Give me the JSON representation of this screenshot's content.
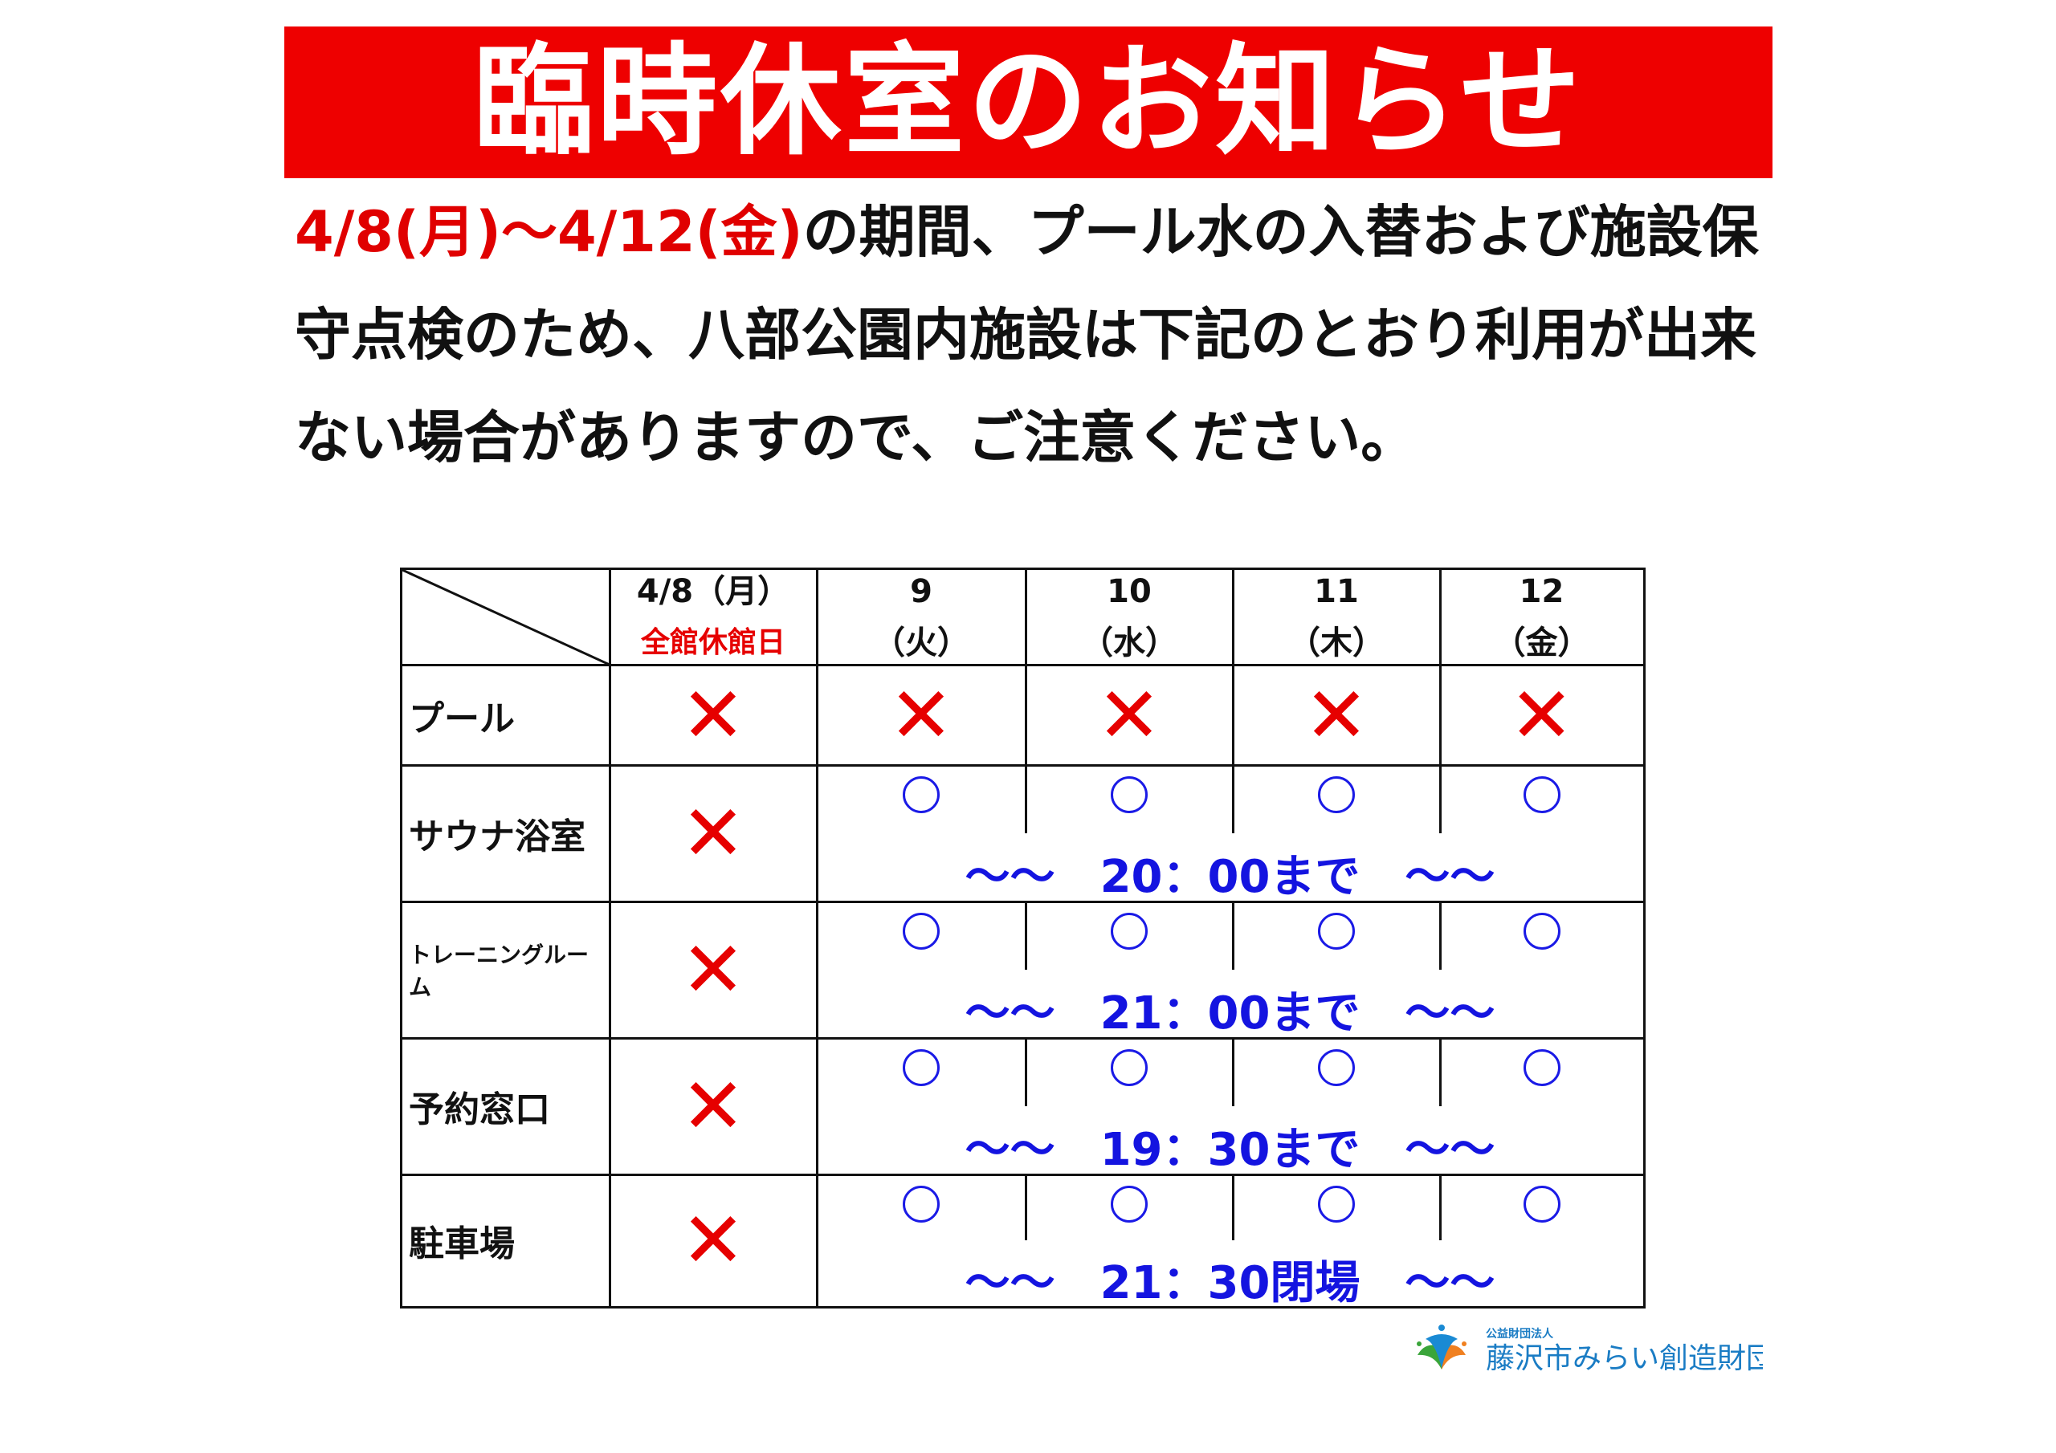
{
  "title": "臨時休室のお知らせ",
  "notice": {
    "period": "4/8(月)～4/12(金)",
    "body": "の期間、プール水の入替および施設保守点検のため、八部公園内施設は下記のとおり利用が出来ない場合がありますので、ご注意ください。"
  },
  "table": {
    "headers": [
      {
        "date": "4/8（月）",
        "sub": "全館休館日",
        "sub_color": "#e60000"
      },
      {
        "date": "9",
        "sub": "（火）"
      },
      {
        "date": "10",
        "sub": "（水）"
      },
      {
        "date": "11",
        "sub": "（木）"
      },
      {
        "date": "12",
        "sub": "（金）"
      }
    ],
    "closed_mark": "✕",
    "open_mark": "○",
    "rows": [
      {
        "facility": "プール",
        "statuses": [
          "closed",
          "closed",
          "closed",
          "closed",
          "closed"
        ],
        "note": ""
      },
      {
        "facility": "サウナ浴室",
        "statuses": [
          "closed",
          "open",
          "open",
          "open",
          "open"
        ],
        "note": "～～　20：00まで　～～"
      },
      {
        "facility": "トレーニングルーム",
        "statuses": [
          "closed",
          "open",
          "open",
          "open",
          "open"
        ],
        "note": "～～　21：00まで　～～"
      },
      {
        "facility": "予約窓口",
        "statuses": [
          "closed",
          "open",
          "open",
          "open",
          "open"
        ],
        "note": "～～　19：30まで　～～"
      },
      {
        "facility": "駐車場",
        "statuses": [
          "closed",
          "open",
          "open",
          "open",
          "open"
        ],
        "note": "～～　21：30閉場　～～"
      }
    ]
  },
  "logo": {
    "small": "公益財団法人",
    "name": "藤沢市みらい創造財団"
  },
  "colors": {
    "banner": "#ee0000",
    "closed": "#e60000",
    "open": "#1414e0",
    "logo": "#1a7cc4"
  }
}
